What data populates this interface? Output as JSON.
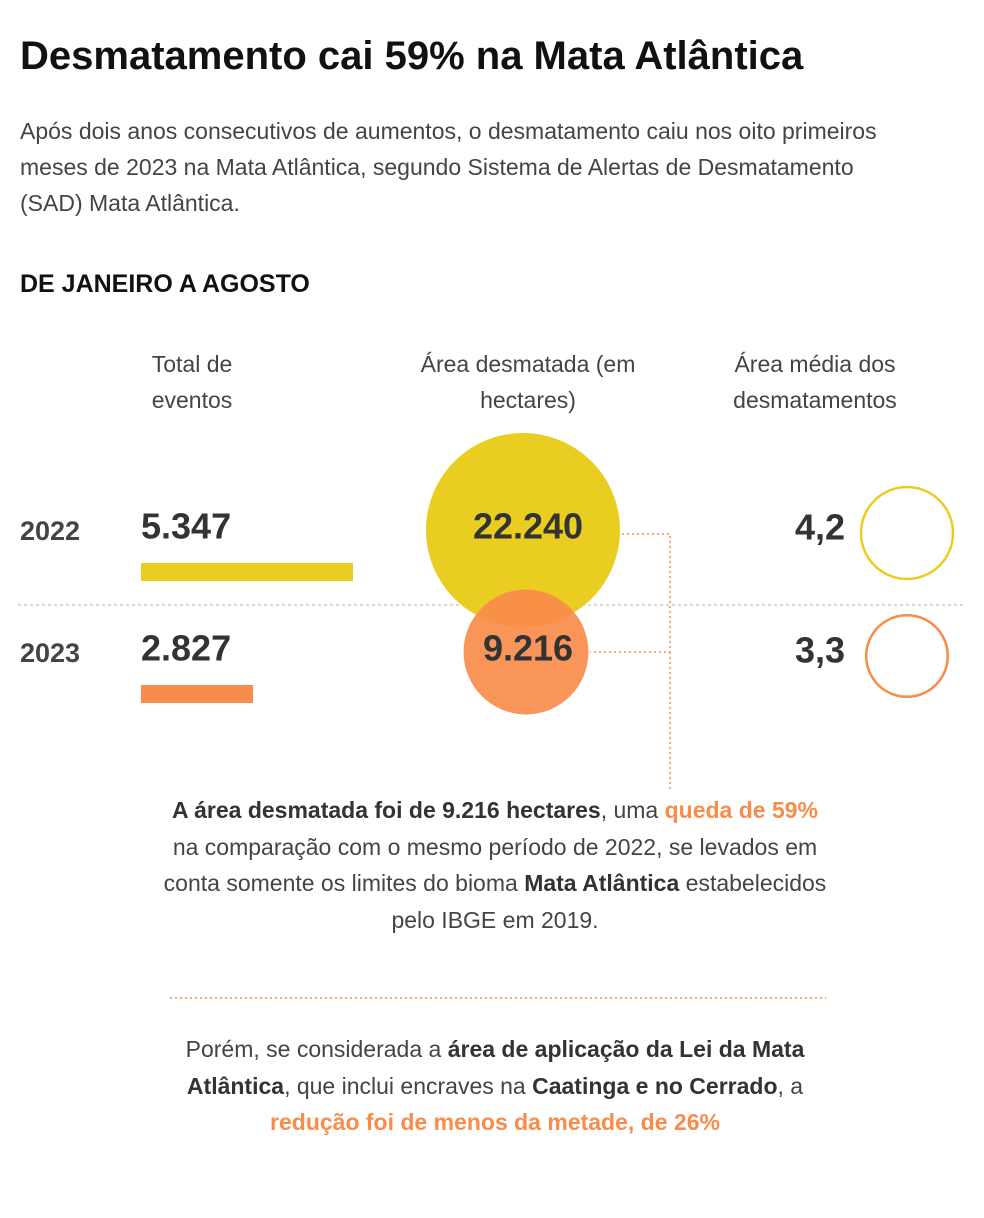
{
  "title": "Desmatamento cai 59% na Mata Atlântica",
  "subtitle": "Após dois anos consecutivos de aumentos, o desmatamento caiu nos oito primeiros meses de 2023 na Mata Atlântica, segundo Sistema de Alertas de Desmatamento (SAD) Mata Atlântica.",
  "section": "DE JANEIRO A AGOSTO",
  "chart_data": [
    {
      "type": "bar",
      "title": "Total de eventos",
      "categories": [
        "2022",
        "2023"
      ],
      "values": [
        5347,
        2827
      ],
      "value_labels": [
        "5.347",
        "2.827"
      ],
      "colors": [
        "#e9cd20",
        "#f98c4a"
      ]
    },
    {
      "type": "bubble",
      "title": "Área desmatada (em hectares)",
      "values": [
        22240,
        9216
      ],
      "value_labels": [
        "22.240",
        "9.216"
      ],
      "colors": [
        "#e9cd20",
        "#f98c4a"
      ]
    },
    {
      "type": "ring",
      "title": "Área média dos desmatamentos",
      "values": [
        4.2,
        3.3
      ],
      "value_labels": [
        "4,2",
        "3,3"
      ],
      "colors": [
        "#e9cd20",
        "#f98c4a"
      ]
    }
  ],
  "notes": [
    [
      {
        "text": "A área desmatada foi de 9.216 hectares",
        "style": "bold"
      },
      {
        "text": ", uma ",
        "style": "normal"
      },
      {
        "text": "queda de 59%",
        "style": "highlight"
      },
      {
        "text": " na comparação com o mesmo período de 2022, se levados em conta somente os limites do bioma ",
        "style": "normal"
      },
      {
        "text": "Mata Atlântica",
        "style": "bold"
      },
      {
        "text": " estabelecidos pelo IBGE em 2019.",
        "style": "normal"
      }
    ],
    [
      {
        "text": "Porém, se considerada a ",
        "style": "normal"
      },
      {
        "text": "área de aplicação da Lei da Mata Atlântica",
        "style": "bold"
      },
      {
        "text": ", que inclui encraves na ",
        "style": "normal"
      },
      {
        "text": "Caatinga e no Cerrado",
        "style": "bold"
      },
      {
        "text": ", a ",
        "style": "normal"
      },
      {
        "text": "redução foi de menos da metade, de 26%",
        "style": "highlight"
      }
    ]
  ]
}
